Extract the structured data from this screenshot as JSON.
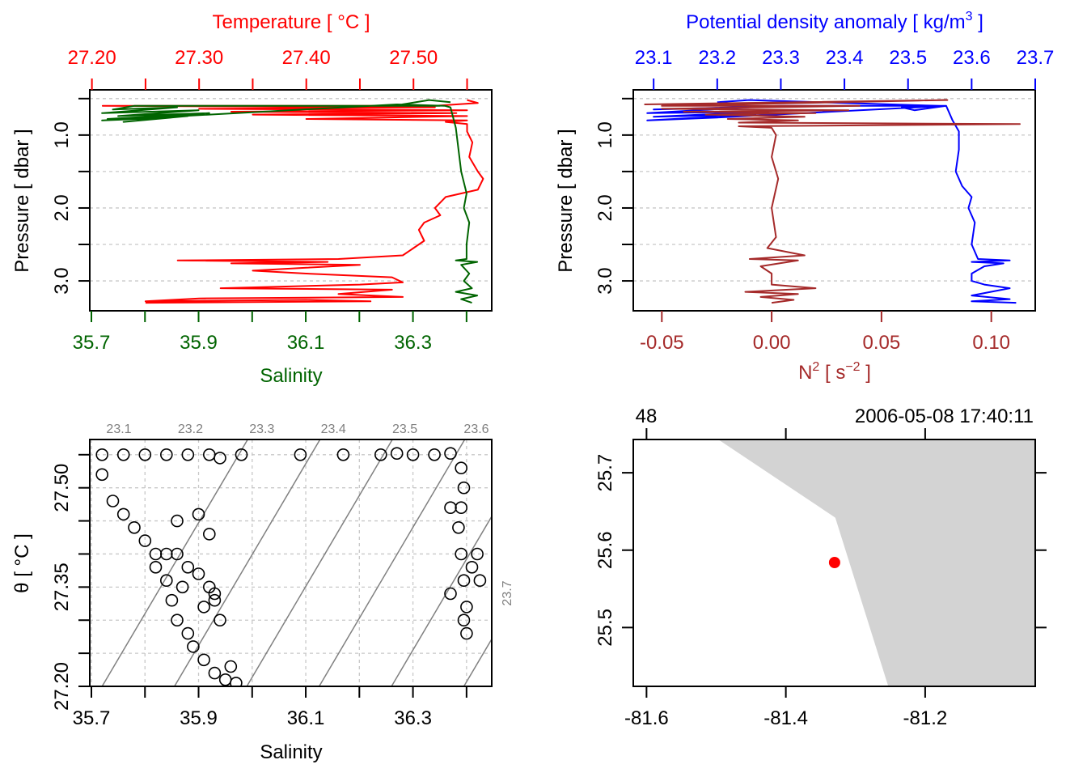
{
  "chart_data": [
    {
      "id": "profile_ts",
      "type": "line",
      "title": "",
      "ylabel": "Pressure [ dbar ]",
      "ylim": [
        0.38,
        3.41
      ],
      "yticks": [
        0.5,
        1.0,
        1.5,
        2.0,
        2.5,
        3.0,
        3.5
      ],
      "ytick_labels": [
        "",
        "1.0",
        "",
        "2.0",
        "",
        "3.0",
        ""
      ],
      "grid": true,
      "top_axis": {
        "label": "Temperature [ °C ]",
        "color": "#FF0000",
        "lim": [
          27.198,
          27.573
        ],
        "ticks": [
          27.2,
          27.25,
          27.3,
          27.35,
          27.4,
          27.45,
          27.5,
          27.55
        ],
        "tick_labels": [
          "27.20",
          "",
          "27.30",
          "",
          "27.40",
          "",
          "27.50",
          ""
        ]
      },
      "bottom_axis": {
        "label": "Salinity",
        "color": "#006400",
        "lim": [
          35.697,
          36.447
        ],
        "ticks": [
          35.7,
          35.8,
          35.9,
          36.0,
          36.1,
          36.2,
          36.3,
          36.4
        ],
        "tick_labels": [
          "35.7",
          "",
          "35.9",
          "",
          "36.1",
          "",
          "36.3",
          ""
        ]
      },
      "series": [
        {
          "name": "Temperature",
          "color": "#FF0000",
          "axis": "top",
          "points": [
            [
              27.55,
              0.52
            ],
            [
              27.56,
              0.56
            ],
            [
              27.52,
              0.6
            ],
            [
              27.21,
              0.6
            ],
            [
              27.52,
              0.62
            ],
            [
              27.3,
              0.64
            ],
            [
              27.55,
              0.66
            ],
            [
              27.33,
              0.68
            ],
            [
              27.54,
              0.7
            ],
            [
              27.35,
              0.72
            ],
            [
              27.55,
              0.74
            ],
            [
              27.4,
              0.78
            ],
            [
              27.55,
              0.8
            ],
            [
              27.53,
              0.82
            ],
            [
              27.55,
              0.85
            ],
            [
              27.55,
              0.95
            ],
            [
              27.555,
              1.1
            ],
            [
              27.552,
              1.3
            ],
            [
              27.56,
              1.5
            ],
            [
              27.565,
              1.6
            ],
            [
              27.56,
              1.75
            ],
            [
              27.53,
              1.85
            ],
            [
              27.52,
              2.0
            ],
            [
              27.525,
              2.1
            ],
            [
              27.51,
              2.2
            ],
            [
              27.505,
              2.3
            ],
            [
              27.51,
              2.45
            ],
            [
              27.5,
              2.55
            ],
            [
              27.49,
              2.65
            ],
            [
              27.43,
              2.7
            ],
            [
              27.28,
              2.72
            ],
            [
              27.42,
              2.74
            ],
            [
              27.33,
              2.76
            ],
            [
              27.45,
              2.78
            ],
            [
              27.4,
              2.82
            ],
            [
              27.35,
              2.86
            ],
            [
              27.4,
              2.9
            ],
            [
              27.48,
              2.95
            ],
            [
              27.49,
              3.02
            ],
            [
              27.45,
              3.05
            ],
            [
              27.32,
              3.1
            ],
            [
              27.48,
              3.12
            ],
            [
              27.43,
              3.18
            ],
            [
              27.49,
              3.22
            ],
            [
              27.3,
              3.24
            ],
            [
              27.25,
              3.28
            ],
            [
              27.4,
              3.26
            ],
            [
              27.46,
              3.28
            ],
            [
              27.25,
              3.3
            ]
          ]
        },
        {
          "name": "Salinity",
          "color": "#006400",
          "axis": "bottom",
          "points": [
            [
              36.37,
              0.55
            ],
            [
              36.33,
              0.52
            ],
            [
              36.28,
              0.58
            ],
            [
              36.35,
              0.6
            ],
            [
              35.9,
              0.6
            ],
            [
              35.78,
              0.6
            ],
            [
              35.74,
              0.65
            ],
            [
              35.86,
              0.62
            ],
            [
              35.72,
              0.7
            ],
            [
              35.9,
              0.66
            ],
            [
              35.75,
              0.74
            ],
            [
              35.92,
              0.7
            ],
            [
              35.73,
              0.78
            ],
            [
              35.88,
              0.74
            ],
            [
              35.76,
              0.82
            ],
            [
              35.85,
              0.76
            ],
            [
              35.72,
              0.8
            ],
            [
              36.27,
              0.58
            ],
            [
              36.36,
              0.6
            ],
            [
              36.37,
              0.62
            ],
            [
              36.38,
              0.9
            ],
            [
              36.385,
              1.2
            ],
            [
              36.39,
              1.5
            ],
            [
              36.4,
              1.8
            ],
            [
              36.395,
              2.0
            ],
            [
              36.405,
              2.2
            ],
            [
              36.4,
              2.5
            ],
            [
              36.4,
              2.7
            ],
            [
              36.38,
              2.72
            ],
            [
              36.42,
              2.74
            ],
            [
              36.39,
              2.78
            ],
            [
              36.405,
              2.9
            ],
            [
              36.395,
              3.0
            ],
            [
              36.41,
              3.1
            ],
            [
              36.38,
              3.15
            ],
            [
              36.42,
              3.2
            ],
            [
              36.39,
              3.25
            ],
            [
              36.41,
              3.3
            ]
          ]
        }
      ]
    },
    {
      "id": "profile_density_n2",
      "type": "line",
      "ylabel": "Pressure [ dbar ]",
      "ylim": [
        0.38,
        3.41
      ],
      "yticks": [
        0.5,
        1.0,
        1.5,
        2.0,
        2.5,
        3.0,
        3.5
      ],
      "ytick_labels": [
        "",
        "1.0",
        "",
        "2.0",
        "",
        "3.0",
        ""
      ],
      "grid": true,
      "top_axis": {
        "label": "Potential density anomaly [ kg/m",
        "label_sup": "3",
        "label_end": " ]",
        "color": "#0000FF",
        "lim": [
          23.068,
          23.7
        ],
        "ticks": [
          23.1,
          23.2,
          23.3,
          23.4,
          23.5,
          23.6,
          23.7
        ],
        "tick_labels": [
          "23.1",
          "23.2",
          "23.3",
          "23.4",
          "23.5",
          "23.6",
          "23.7"
        ]
      },
      "bottom_axis": {
        "label": "N",
        "label_sup1": "2",
        "label_mid": " [ s",
        "label_sup2": "−2",
        "label_end": " ]",
        "color": "#A52A2A",
        "lim": [
          -0.063,
          0.12
        ],
        "ticks": [
          -0.05,
          0.0,
          0.05,
          0.1
        ],
        "tick_labels": [
          "-0.05",
          "0.00",
          "0.05",
          "0.10"
        ]
      },
      "series": [
        {
          "name": "Potential density anomaly",
          "color": "#0000FF",
          "axis": "top",
          "points": [
            [
              23.2,
              0.55
            ],
            [
              23.25,
              0.52
            ],
            [
              23.55,
              0.6
            ],
            [
              23.49,
              0.62
            ],
            [
              23.51,
              0.66
            ],
            [
              23.56,
              0.6
            ],
            [
              23.3,
              0.6
            ],
            [
              23.1,
              0.65
            ],
            [
              23.25,
              0.62
            ],
            [
              23.09,
              0.7
            ],
            [
              23.28,
              0.68
            ],
            [
              23.1,
              0.75
            ],
            [
              23.26,
              0.72
            ],
            [
              23.09,
              0.8
            ],
            [
              23.2,
              0.76
            ],
            [
              23.56,
              0.6
            ],
            [
              23.57,
              0.8
            ],
            [
              23.58,
              0.95
            ],
            [
              23.58,
              1.2
            ],
            [
              23.575,
              1.5
            ],
            [
              23.585,
              1.7
            ],
            [
              23.6,
              1.85
            ],
            [
              23.595,
              2.0
            ],
            [
              23.605,
              2.2
            ],
            [
              23.6,
              2.5
            ],
            [
              23.61,
              2.7
            ],
            [
              23.66,
              2.72
            ],
            [
              23.6,
              2.74
            ],
            [
              23.65,
              2.76
            ],
            [
              23.62,
              2.8
            ],
            [
              23.6,
              2.9
            ],
            [
              23.6,
              3.0
            ],
            [
              23.62,
              3.05
            ],
            [
              23.66,
              3.1
            ],
            [
              23.6,
              3.2
            ],
            [
              23.66,
              3.25
            ],
            [
              23.6,
              3.28
            ],
            [
              23.67,
              3.3
            ]
          ]
        },
        {
          "name": "N2",
          "color": "#A52A2A",
          "axis": "bottom",
          "points": [
            [
              -0.058,
              0.58
            ],
            [
              0.08,
              0.52
            ],
            [
              -0.05,
              0.6
            ],
            [
              0.04,
              0.6
            ],
            [
              -0.05,
              0.64
            ],
            [
              0.035,
              0.66
            ],
            [
              -0.04,
              0.68
            ],
            [
              0.02,
              0.7
            ],
            [
              -0.03,
              0.72
            ],
            [
              0.015,
              0.75
            ],
            [
              -0.02,
              0.78
            ],
            [
              0.012,
              0.8
            ],
            [
              -0.015,
              0.83
            ],
            [
              0.113,
              0.85
            ],
            [
              -0.015,
              0.88
            ],
            [
              0.0,
              0.9
            ],
            [
              0.002,
              1.0
            ],
            [
              0.0,
              1.3
            ],
            [
              0.003,
              1.6
            ],
            [
              0.0,
              2.0
            ],
            [
              0.002,
              2.4
            ],
            [
              -0.002,
              2.55
            ],
            [
              0.015,
              2.65
            ],
            [
              -0.01,
              2.7
            ],
            [
              0.012,
              2.72
            ],
            [
              -0.005,
              2.8
            ],
            [
              0.0,
              2.9
            ],
            [
              0.0,
              3.05
            ],
            [
              0.02,
              3.1
            ],
            [
              -0.012,
              3.15
            ],
            [
              0.012,
              3.18
            ],
            [
              -0.005,
              3.22
            ],
            [
              0.01,
              3.26
            ],
            [
              0.0,
              3.3
            ]
          ]
        }
      ]
    },
    {
      "id": "ts_diagram",
      "type": "scatter",
      "xlabel": "Salinity",
      "ylabel": "θ [ °C ]",
      "xlim": [
        35.697,
        36.447
      ],
      "ylim": [
        27.2,
        27.573
      ],
      "xticks": [
        35.7,
        35.8,
        35.9,
        36.0,
        36.1,
        36.2,
        36.3,
        36.4
      ],
      "xtick_labels": [
        "35.7",
        "",
        "35.9",
        "",
        "36.1",
        "",
        "36.3",
        ""
      ],
      "yticks": [
        27.2,
        27.25,
        27.3,
        27.35,
        27.4,
        27.45,
        27.5,
        27.55
      ],
      "ytick_labels": [
        "27.20",
        "",
        "",
        "27.35",
        "",
        "",
        "27.50",
        ""
      ],
      "grid": true,
      "isopycnals": {
        "color": "#808080",
        "levels": [
          23.1,
          23.2,
          23.3,
          23.4,
          23.5,
          23.6,
          23.7
        ],
        "labels": [
          "23.1",
          "23.2",
          "23.3",
          "23.4",
          "23.5",
          "23.6",
          "23.7"
        ],
        "bottom_salinity": [
          35.72,
          35.855,
          35.99,
          36.125,
          36.26,
          36.395,
          36.53
        ],
        "top_salinity": [
          35.755,
          35.89,
          36.025,
          36.16,
          36.295,
          36.43,
          36.565
        ]
      },
      "points": [
        [
          35.72,
          27.55
        ],
        [
          35.76,
          27.55
        ],
        [
          35.8,
          27.55
        ],
        [
          35.84,
          27.55
        ],
        [
          35.88,
          27.55
        ],
        [
          35.92,
          27.55
        ],
        [
          35.94,
          27.545
        ],
        [
          35.98,
          27.55
        ],
        [
          36.09,
          27.55
        ],
        [
          36.17,
          27.55
        ],
        [
          36.24,
          27.55
        ],
        [
          36.27,
          27.552
        ],
        [
          36.3,
          27.55
        ],
        [
          36.34,
          27.55
        ],
        [
          36.37,
          27.552
        ],
        [
          36.39,
          27.53
        ],
        [
          36.395,
          27.5
        ],
        [
          36.39,
          27.47
        ],
        [
          36.385,
          27.44
        ],
        [
          36.39,
          27.4
        ],
        [
          36.395,
          27.36
        ],
        [
          36.4,
          27.32
        ],
        [
          36.395,
          27.3
        ],
        [
          36.4,
          27.28
        ],
        [
          36.42,
          27.4
        ],
        [
          36.425,
          27.36
        ],
        [
          36.41,
          27.38
        ],
        [
          36.37,
          27.47
        ],
        [
          36.37,
          27.34
        ],
        [
          35.72,
          27.52
        ],
        [
          35.74,
          27.48
        ],
        [
          35.76,
          27.46
        ],
        [
          35.78,
          27.44
        ],
        [
          35.8,
          27.42
        ],
        [
          35.82,
          27.4
        ],
        [
          35.84,
          27.4
        ],
        [
          35.86,
          27.45
        ],
        [
          35.9,
          27.46
        ],
        [
          35.92,
          27.43
        ],
        [
          35.88,
          27.38
        ],
        [
          35.9,
          27.37
        ],
        [
          35.92,
          27.35
        ],
        [
          35.93,
          27.33
        ],
        [
          35.87,
          27.35
        ],
        [
          35.85,
          27.33
        ],
        [
          35.86,
          27.3
        ],
        [
          35.88,
          27.28
        ],
        [
          35.89,
          27.26
        ],
        [
          35.91,
          27.24
        ],
        [
          35.93,
          27.22
        ],
        [
          35.95,
          27.21
        ],
        [
          35.97,
          27.205
        ],
        [
          35.96,
          27.23
        ],
        [
          35.94,
          27.3
        ],
        [
          35.93,
          27.34
        ],
        [
          35.91,
          27.32
        ],
        [
          35.82,
          27.38
        ],
        [
          35.84,
          27.36
        ],
        [
          35.86,
          27.4
        ]
      ]
    },
    {
      "id": "station_map",
      "type": "scatter",
      "xlim": [
        -81.619,
        -81.042
      ],
      "ylim": [
        25.424,
        25.743
      ],
      "xticks": [
        -81.6,
        -81.4,
        -81.2
      ],
      "xtick_labels": [
        "-81.6",
        "-81.4",
        "-81.2"
      ],
      "yticks": [
        25.5,
        25.6,
        25.7
      ],
      "ytick_labels": [
        "25.5",
        "25.6",
        "25.7"
      ],
      "top_labels": {
        "station": "48",
        "datetime": "2006-05-08 17:40:11"
      },
      "land_color": "#D3D3D3",
      "coastline": [
        [
          -81.497,
          25.743
        ],
        [
          -81.329,
          25.642
        ],
        [
          -81.253,
          25.424
        ]
      ],
      "station": {
        "lon": -81.33,
        "lat": 25.584,
        "color": "#FF0000"
      }
    }
  ]
}
